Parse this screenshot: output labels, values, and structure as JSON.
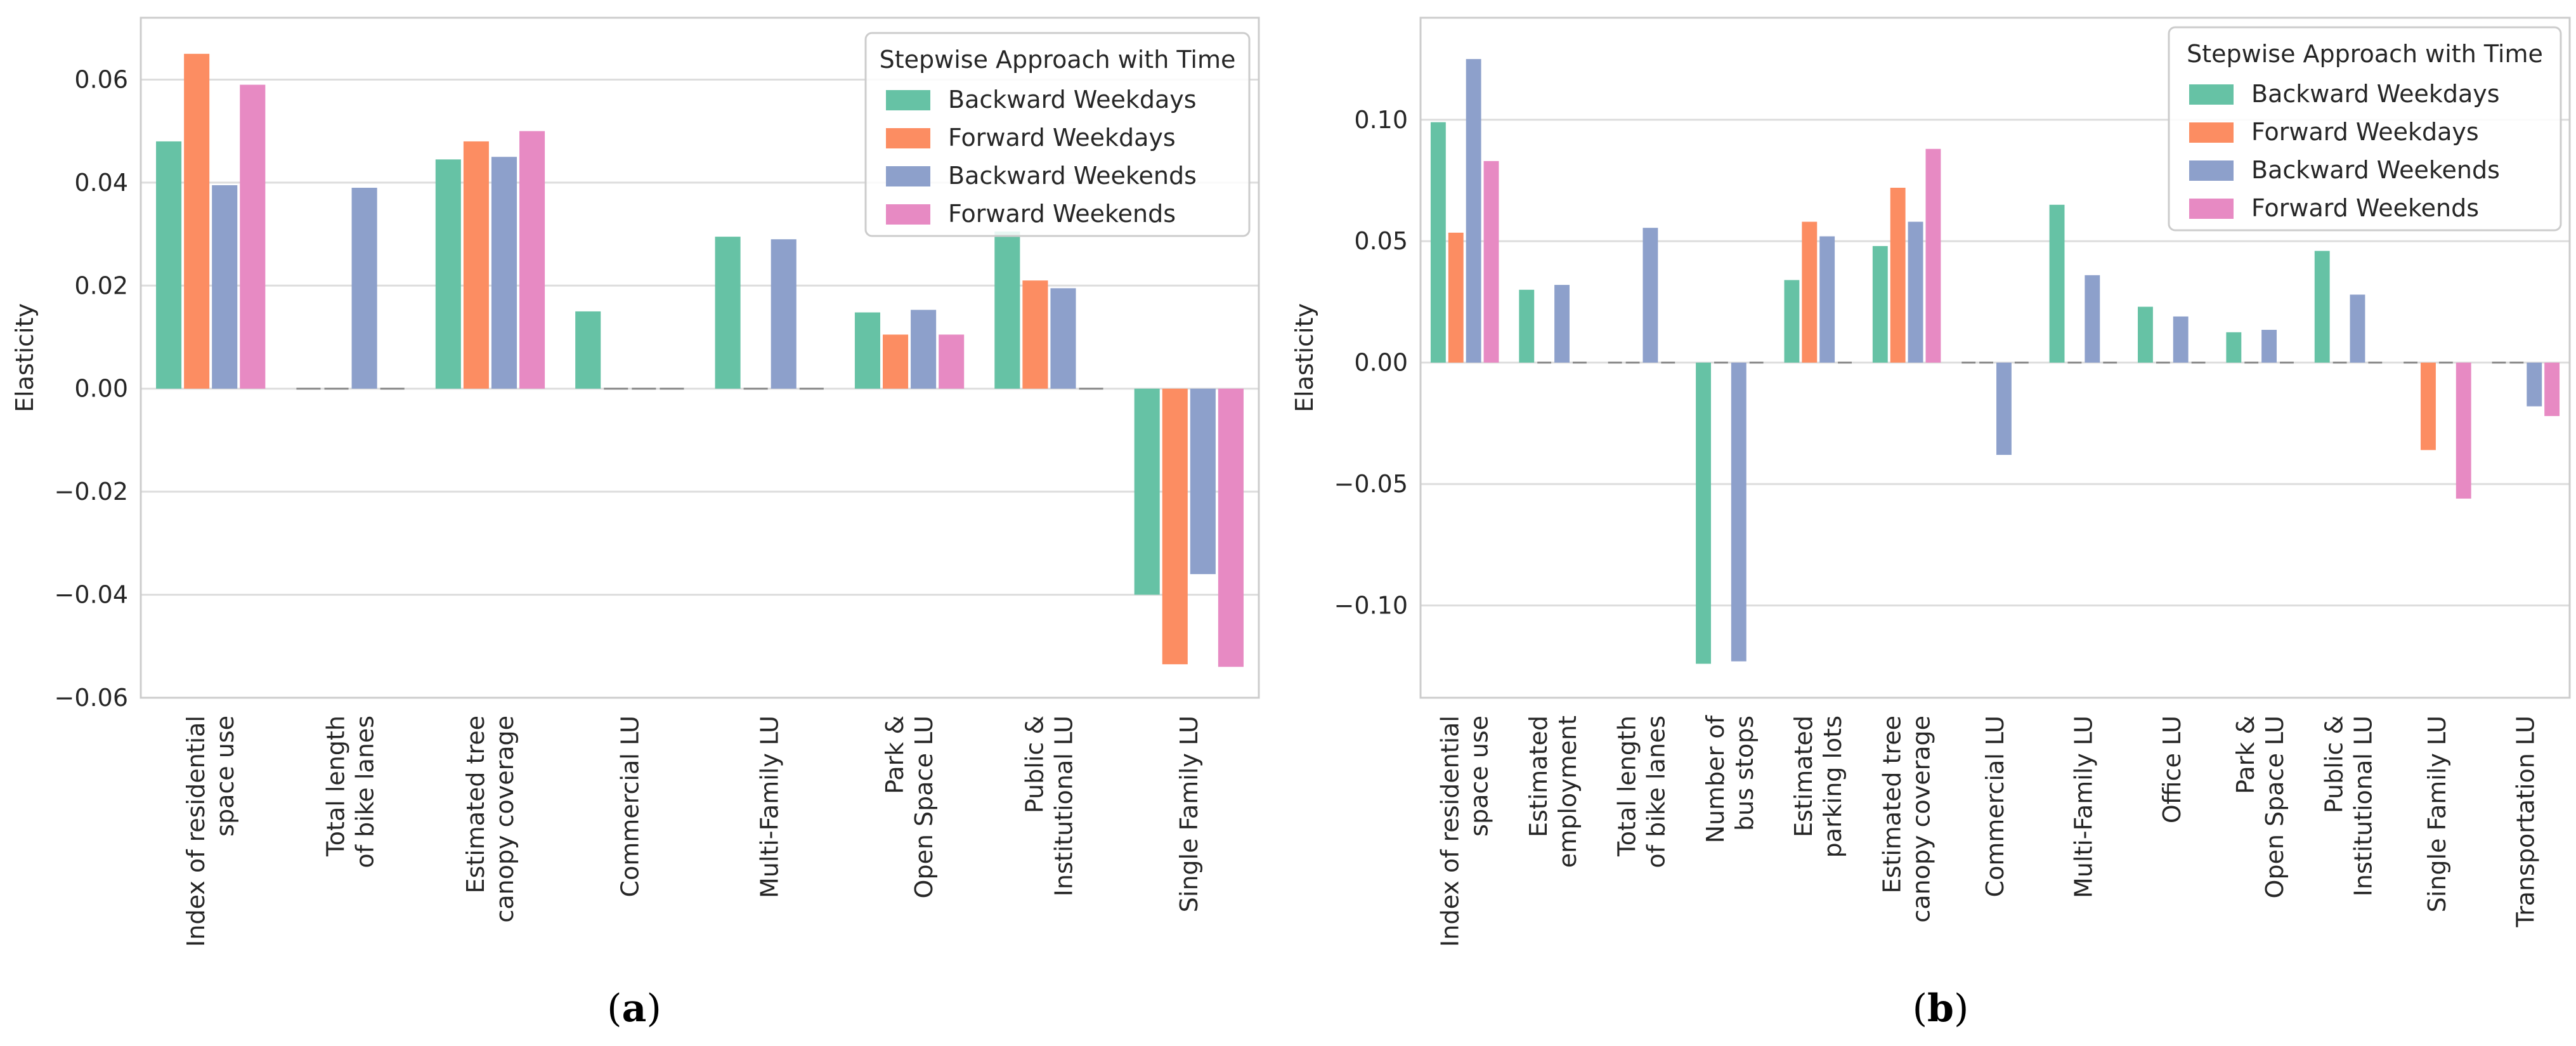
{
  "legend": {
    "title": "Stepwise Approach with Time",
    "entries": [
      "Backward Weekdays",
      "Forward Weekdays",
      "Backward Weekends",
      "Forward Weekends"
    ]
  },
  "colors": {
    "series": [
      "#66c2a5",
      "#fc8d62",
      "#8da0cb",
      "#e78ac3"
    ],
    "grid": "#dddddd",
    "axes_frame": "#cccccc",
    "zero_tick": "#888888"
  },
  "captions": {
    "a": "a",
    "b": "b"
  },
  "chart_data": [
    {
      "id": "a",
      "type": "bar",
      "ylabel": "Elasticity",
      "ylim": [
        -0.06,
        0.072
      ],
      "yticks": [
        -0.06,
        -0.04,
        -0.02,
        0.0,
        0.02,
        0.04,
        0.06
      ],
      "ytick_labels": [
        "−0.06",
        "−0.04",
        "−0.02",
        "0.00",
        "0.02",
        "0.04",
        "0.06"
      ],
      "grid": true,
      "legend_position": "top-right",
      "categories": [
        [
          "Index of residential",
          "space use"
        ],
        [
          "Total length",
          "of bike lanes"
        ],
        [
          "Estimated tree",
          "canopy coverage"
        ],
        [
          "Commercial LU"
        ],
        [
          "Multi-Family LU"
        ],
        [
          "Park &",
          "Open Space LU"
        ],
        [
          "Public &",
          "Institutional LU"
        ],
        [
          "Single Family LU"
        ]
      ],
      "series": [
        {
          "name": "Backward Weekdays",
          "values": [
            0.048,
            0,
            0.0445,
            0.015,
            0.0295,
            0.0148,
            0.0305,
            -0.04
          ]
        },
        {
          "name": "Forward Weekdays",
          "values": [
            0.065,
            0,
            0.048,
            0,
            0,
            0.0105,
            0.021,
            -0.0535
          ]
        },
        {
          "name": "Backward Weekends",
          "values": [
            0.0395,
            0.039,
            0.045,
            0,
            0.029,
            0.0153,
            0.0195,
            -0.036
          ]
        },
        {
          "name": "Forward Weekends",
          "values": [
            0.059,
            0,
            0.05,
            0,
            0,
            0.0105,
            0,
            -0.054
          ]
        }
      ]
    },
    {
      "id": "b",
      "type": "bar",
      "ylabel": "Elasticity",
      "ylim": [
        -0.138,
        0.142
      ],
      "yticks": [
        -0.1,
        -0.05,
        0.0,
        0.05,
        0.1
      ],
      "ytick_labels": [
        "−0.10",
        "−0.05",
        "0.00",
        "0.05",
        "0.10"
      ],
      "grid": true,
      "legend_position": "top-right",
      "categories": [
        [
          "Index of residential",
          "space use"
        ],
        [
          "Estimated",
          "employment"
        ],
        [
          "Total length",
          "of bike lanes"
        ],
        [
          "Number of",
          "bus stops"
        ],
        [
          "Estimated",
          "parking lots"
        ],
        [
          "Estimated tree",
          "canopy coverage"
        ],
        [
          "Commercial LU"
        ],
        [
          "Multi-Family LU"
        ],
        [
          "Office LU"
        ],
        [
          "Park &",
          "Open Space LU"
        ],
        [
          "Public &",
          "Institutional LU"
        ],
        [
          "Single Family LU"
        ],
        [
          "Transportation LU"
        ]
      ],
      "series": [
        {
          "name": "Backward Weekdays",
          "values": [
            0.099,
            0.03,
            0,
            -0.124,
            0.034,
            0.048,
            0,
            0.065,
            0.023,
            0.0125,
            0.046,
            0,
            0
          ]
        },
        {
          "name": "Forward Weekdays",
          "values": [
            0.0535,
            0,
            0,
            0,
            0.058,
            0.072,
            0,
            0,
            0,
            0,
            0,
            -0.036,
            0
          ]
        },
        {
          "name": "Backward Weekends",
          "values": [
            0.125,
            0.032,
            0.0555,
            -0.123,
            0.052,
            0.058,
            -0.038,
            0.036,
            0.019,
            0.0135,
            0.028,
            0,
            -0.018
          ]
        },
        {
          "name": "Forward Weekends",
          "values": [
            0.083,
            0,
            0,
            0,
            0,
            0.088,
            0,
            0,
            0,
            0,
            0,
            -0.056,
            -0.022
          ]
        }
      ]
    }
  ]
}
